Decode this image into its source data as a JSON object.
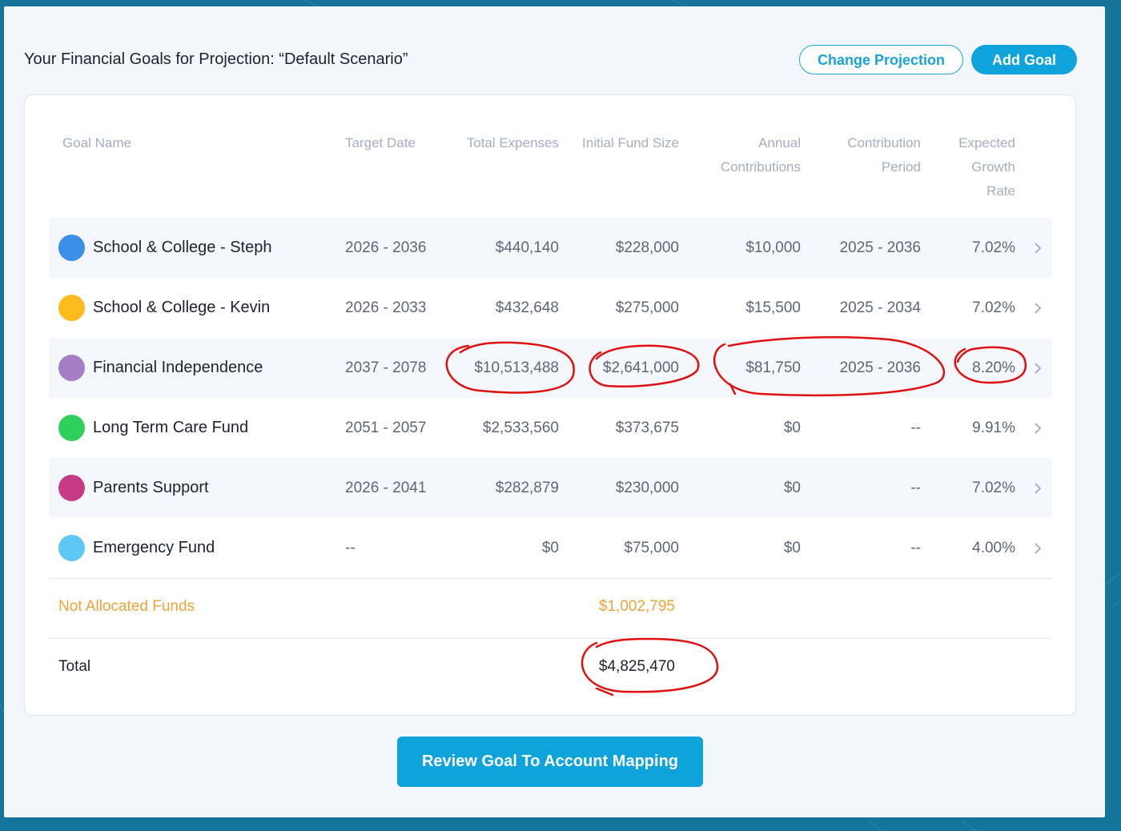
{
  "header": {
    "title": "Your Financial Goals for Projection: “Default Scenario”",
    "change_projection_label": "Change Projection",
    "add_goal_label": "Add Goal"
  },
  "table": {
    "columns": {
      "goal_name": "Goal Name",
      "target_date": "Target Date",
      "total_expenses": "Total Expenses",
      "initial_fund_size": "Initial Fund Size",
      "annual_contributions": [
        "Annual",
        "Contributions"
      ],
      "contribution_period": [
        "Contribution",
        "Period"
      ],
      "expected_growth_rate": [
        "Expected",
        "Growth",
        "Rate"
      ]
    },
    "rows": [
      {
        "color": "#3b8fe8",
        "name": "School & College - Steph",
        "target_date": "2026 - 2036",
        "total_expenses": "$440,140",
        "initial_fund_size": "$228,000",
        "annual_contributions": "$10,000",
        "contribution_period": "2025 - 2036",
        "expected_growth_rate": "7.02%"
      },
      {
        "color": "#fdbb1d",
        "name": "School & College - Kevin",
        "target_date": "2026 - 2033",
        "total_expenses": "$432,648",
        "initial_fund_size": "$275,000",
        "annual_contributions": "$15,500",
        "contribution_period": "2025 - 2034",
        "expected_growth_rate": "7.02%"
      },
      {
        "color": "#a47dc6",
        "name": "Financial Independence",
        "target_date": "2037 - 2078",
        "total_expenses": "$10,513,488",
        "initial_fund_size": "$2,641,000",
        "annual_contributions": "$81,750",
        "contribution_period": "2025 - 2036",
        "expected_growth_rate": "8.20%"
      },
      {
        "color": "#2ecf5b",
        "name": "Long Term Care Fund",
        "target_date": "2051 - 2057",
        "total_expenses": "$2,533,560",
        "initial_fund_size": "$373,675",
        "annual_contributions": "$0",
        "contribution_period": "--",
        "expected_growth_rate": "9.91%"
      },
      {
        "color": "#c73a86",
        "name": "Parents Support",
        "target_date": "2026 - 2041",
        "total_expenses": "$282,879",
        "initial_fund_size": "$230,000",
        "annual_contributions": "$0",
        "contribution_period": "--",
        "expected_growth_rate": "7.02%"
      },
      {
        "color": "#5bc8f5",
        "name": "Emergency Fund",
        "target_date": "--",
        "total_expenses": "$0",
        "initial_fund_size": "$75,000",
        "annual_contributions": "$0",
        "contribution_period": "--",
        "expected_growth_rate": "4.00%"
      }
    ],
    "not_allocated": {
      "label": "Not Allocated Funds",
      "value": "$1,002,795"
    },
    "total": {
      "label": "Total",
      "value": "$4,825,470"
    }
  },
  "footer": {
    "review_label": "Review Goal To Account Mapping"
  },
  "colors": {
    "accent": "#0fa3dc",
    "background": "#14749a",
    "warning": "#f0a33a",
    "annotation": "#e01010"
  }
}
